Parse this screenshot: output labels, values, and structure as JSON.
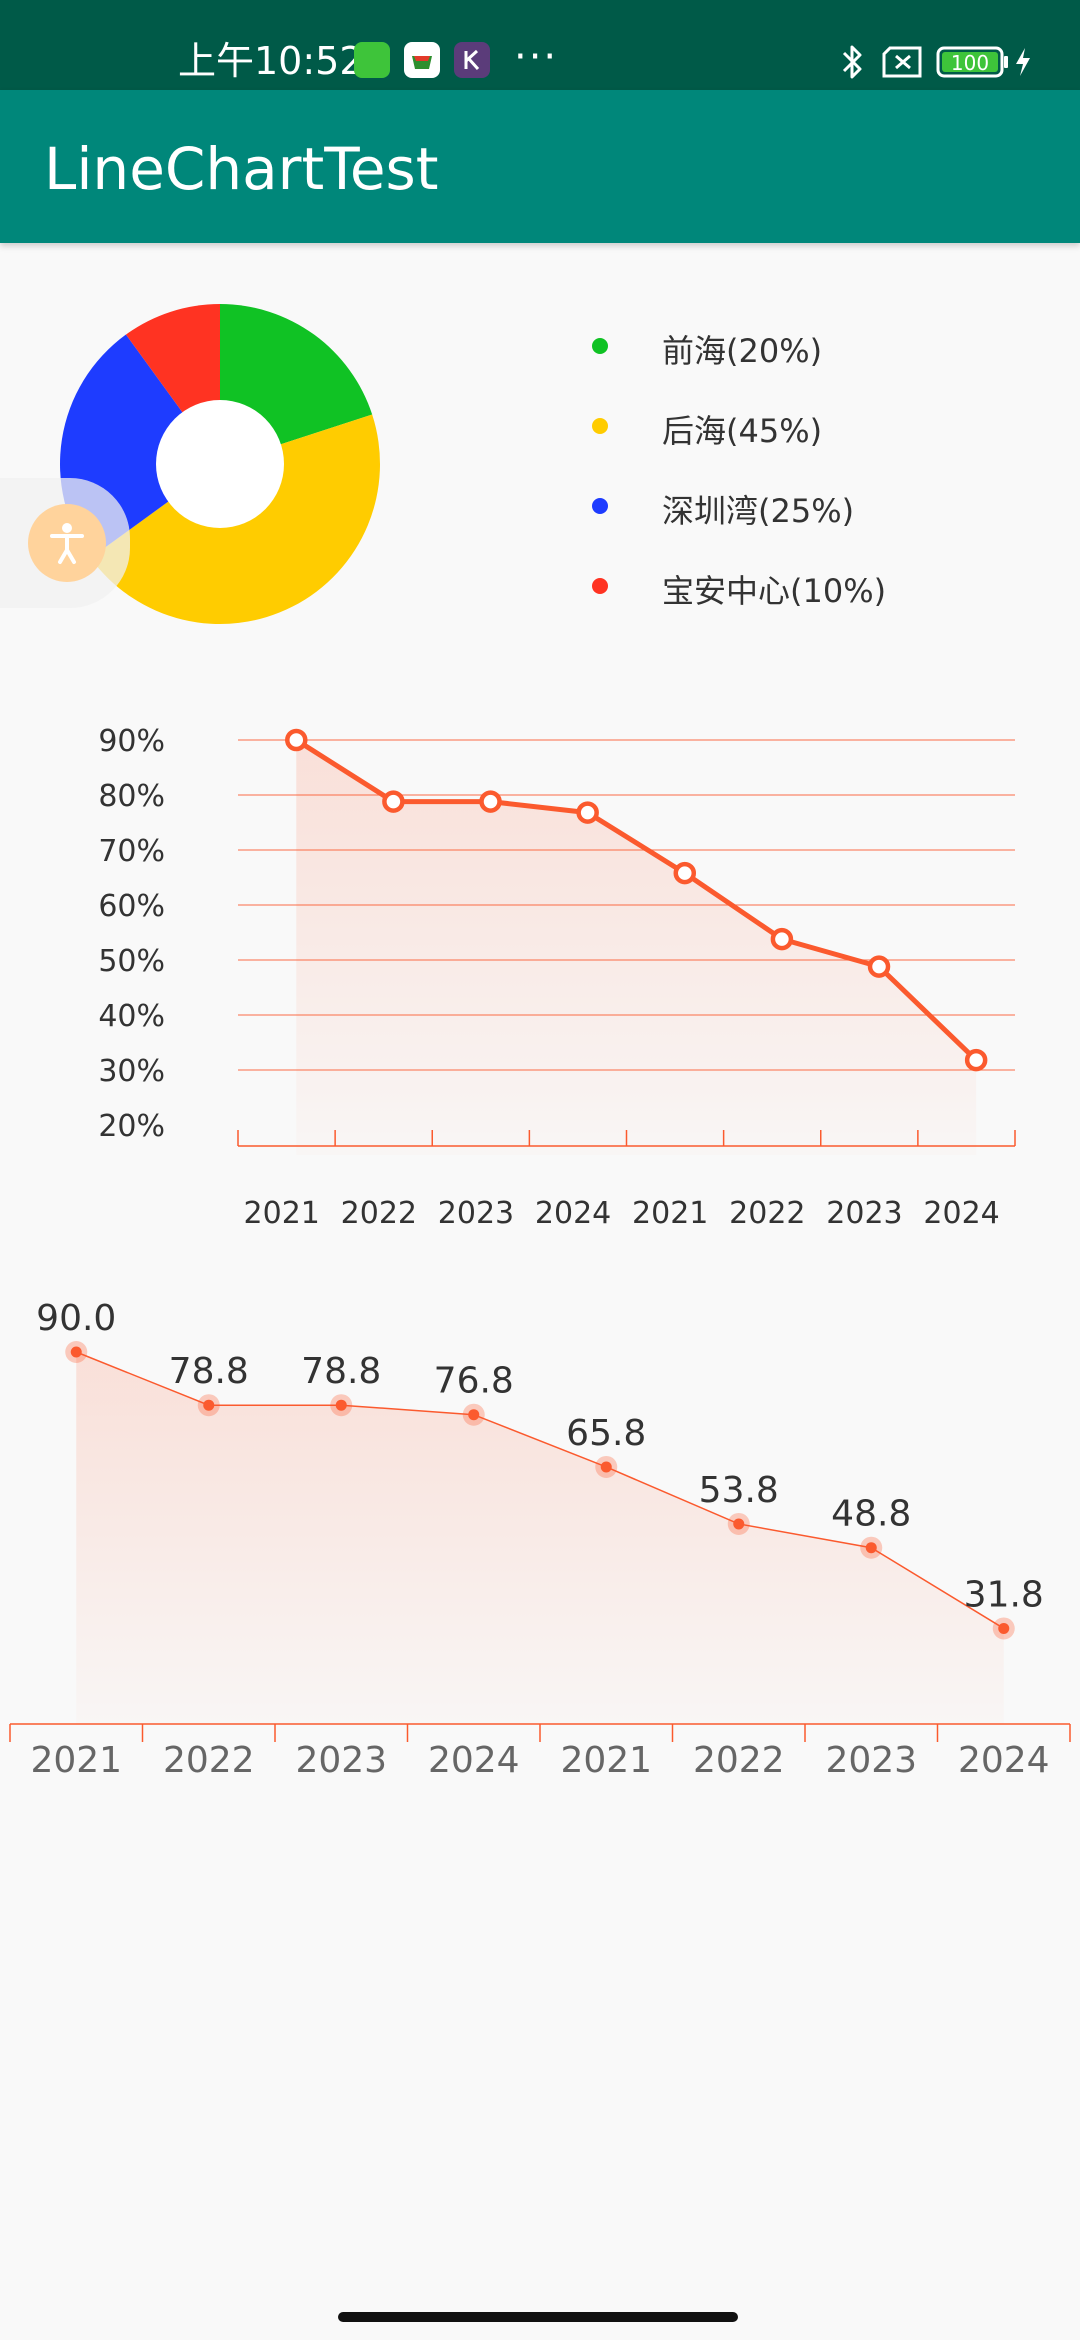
{
  "status_bar": {
    "time": "上午10:52",
    "dots": "···",
    "battery": "100",
    "icons": [
      "app-icon-green",
      "app-icon-basket",
      "app-icon-k",
      "bluetooth-icon",
      "sim-icon",
      "battery-icon",
      "charging-icon"
    ]
  },
  "app_bar": {
    "title": "LineChartTest"
  },
  "colors": {
    "status_bar": "#005a48",
    "app_bar": "#00877a",
    "line": "#fb5a2e",
    "pie_green": "#10c224",
    "pie_yellow": "#ffcc00",
    "pie_blue": "#1e3cff",
    "pie_red": "#ff3322"
  },
  "chart_data": [
    {
      "type": "pie",
      "donut": true,
      "categories": [
        "前海",
        "后海",
        "深圳湾",
        "宝安中心"
      ],
      "values": [
        20,
        45,
        25,
        10
      ],
      "legend_labels": [
        "前海(20%)",
        "后海(45%)",
        "深圳湾(25%)",
        "宝安中心(10%)"
      ],
      "colors": [
        "#10c224",
        "#ffcc00",
        "#1e3cff",
        "#ff3322"
      ],
      "legend_position": "right"
    },
    {
      "type": "line",
      "categories": [
        "2021",
        "2022",
        "2023",
        "2024",
        "2021",
        "2022",
        "2023",
        "2024"
      ],
      "values": [
        90.0,
        78.8,
        78.8,
        76.8,
        65.8,
        53.8,
        48.8,
        31.8
      ],
      "y_ticks": [
        "20%",
        "30%",
        "40%",
        "50%",
        "60%",
        "70%",
        "80%",
        "90%"
      ],
      "ylim": [
        20,
        90
      ],
      "grid": true,
      "area_fill": true,
      "markers": "hollow-circle"
    },
    {
      "type": "line",
      "categories": [
        "2021",
        "2022",
        "2023",
        "2024",
        "2021",
        "2022",
        "2023",
        "2024"
      ],
      "values": [
        90.0,
        78.8,
        78.8,
        76.8,
        65.8,
        53.8,
        48.8,
        31.8
      ],
      "data_labels": [
        "90.0",
        "78.8",
        "78.8",
        "76.8",
        "65.8",
        "53.8",
        "48.8",
        "31.8"
      ],
      "grid": false,
      "area_fill": true,
      "markers": "filled-dot"
    }
  ]
}
